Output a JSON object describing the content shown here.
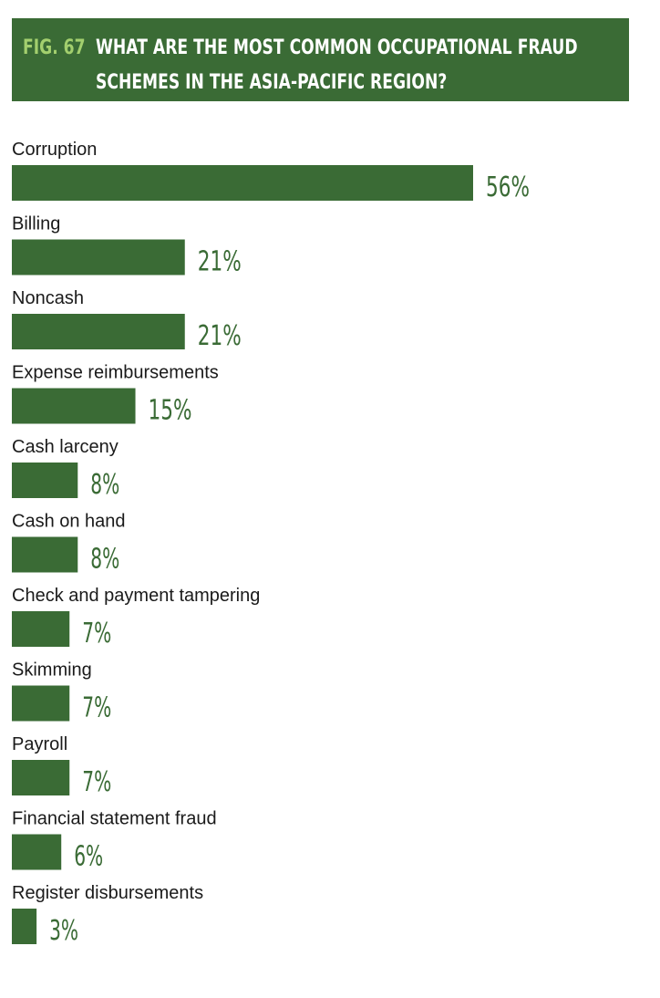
{
  "header": {
    "fig_label": "FIG. 67",
    "title": "WHAT ARE THE MOST COMMON OCCUPATIONAL FRAUD SCHEMES IN THE ASIA-PACIFIC REGION?"
  },
  "colors": {
    "bar": "#3a6b35",
    "header_bg": "#3a6b35",
    "fig_label": "#a3cf6e",
    "title": "#ffffff",
    "value_label": "#3a6b35",
    "category_label": "#1a1a1a"
  },
  "chart_data": {
    "type": "bar",
    "orientation": "horizontal",
    "title": "WHAT ARE THE MOST COMMON OCCUPATIONAL FRAUD SCHEMES IN THE ASIA-PACIFIC REGION?",
    "categories": [
      "Corruption",
      "Billing",
      "Noncash",
      "Expense reimbursements",
      "Cash larceny",
      "Cash on hand",
      "Check and payment tampering",
      "Skimming",
      "Payroll",
      "Financial statement fraud",
      "Register disbursements"
    ],
    "values": [
      56,
      21,
      21,
      15,
      8,
      8,
      7,
      7,
      7,
      6,
      3
    ],
    "value_labels": [
      "56%",
      "21%",
      "21%",
      "15%",
      "8%",
      "8%",
      "7%",
      "7%",
      "7%",
      "6%",
      "3%"
    ],
    "unit": "%",
    "xlim": [
      0,
      56
    ],
    "grid": false,
    "legend": "none"
  }
}
